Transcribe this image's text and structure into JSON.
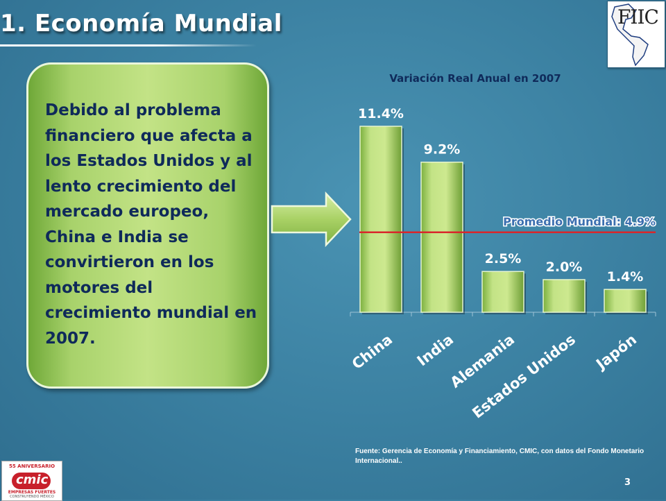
{
  "slide": {
    "title": "1. Economía Mundial",
    "body_text": "Debido al problema financiero que afecta a los Estados Unidos y al lento crecimiento del mercado  europeo, China  e India se convirtieron en los motores del crecimiento mundial en 2007.",
    "source": "Fuente: Gerencia de Economía y Financiamiento, CMIC, con datos del Fondo Monetario Internacional..",
    "page_number": "3"
  },
  "logos": {
    "fiic": {
      "text": "FIIC"
    },
    "cmic": {
      "word": "cmic",
      "arc": "55 ANIVERSARIO",
      "line1": "EMPRESAS FUERTES",
      "line2": "CONSTRUYENDO MÉXICO"
    }
  },
  "colors": {
    "background": "#3a7fa0",
    "bar_fill": "#b8dc78",
    "text_box": "#b4da74",
    "body_text": "#0f2a5a",
    "reference_line": "#d9262b",
    "reference_label": "#3c6fb0"
  },
  "icons": [
    "right-arrow-icon"
  ],
  "chart_data": {
    "type": "bar",
    "title": "Variación Real Anual en 2007",
    "categories": [
      "China",
      "India",
      "Alemania",
      "Estados Unidos",
      "Japón"
    ],
    "values": [
      11.4,
      9.2,
      2.5,
      2.0,
      1.4
    ],
    "value_labels": [
      "11.4%",
      "9.2%",
      "2.5%",
      "2.0%",
      "1.4%"
    ],
    "unit": "%",
    "ylim": [
      0,
      11.4
    ],
    "grid": false,
    "legend": "none",
    "reference_line": {
      "label": "Promedio Mundial: 4.9%",
      "value": 4.9
    }
  }
}
